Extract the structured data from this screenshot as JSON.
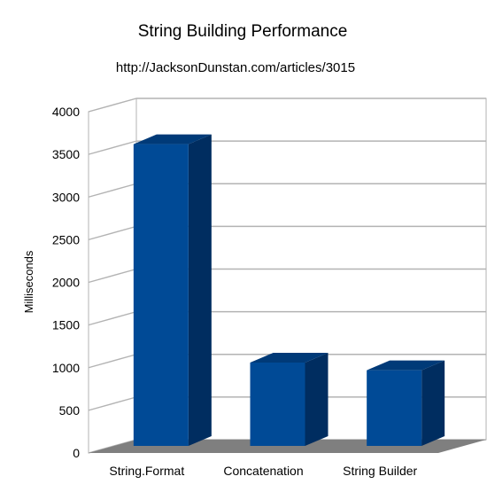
{
  "chart_data": {
    "type": "bar",
    "title": "String Building Performance",
    "subtitle": "http://JacksonDunstan.com/articles/3015",
    "xlabel": "",
    "ylabel": "Milliseconds",
    "categories": [
      "String.Format",
      "Concatenation",
      "String Builder"
    ],
    "values": [
      3620,
      1060,
      970
    ],
    "ylim": [
      0,
      4000
    ],
    "yticks": [
      "0",
      "500",
      "1000",
      "1500",
      "2000",
      "2500",
      "3000",
      "3500",
      "4000"
    ],
    "grid": true,
    "legend": "none",
    "three_d": true,
    "colors": {
      "bar_front": "#004A96",
      "bar_side": "#002D60",
      "bar_top": "#003A78",
      "floor": "#7F7F7F",
      "grid": "#B3B3B3"
    }
  }
}
